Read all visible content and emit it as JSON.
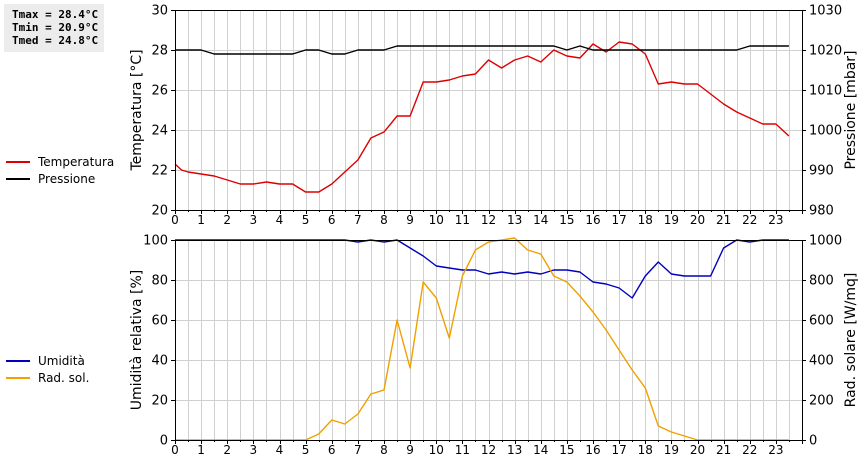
{
  "stats": {
    "tmax": "Tmax = 28.4°C",
    "tmin": "Tmin = 20.9°C",
    "tmed": "Tmed = 24.8°C"
  },
  "colors": {
    "temperatura": "#dd0000",
    "pressione": "#000000",
    "umidita": "#0000bb",
    "rad_sol": "#f0a000",
    "grid": "#d0d0d0"
  },
  "chart_data": [
    {
      "type": "line",
      "ylabel_left": "Temperatura [°C]",
      "ylabel_right": "Pressione [mbar]",
      "x_ticks": [
        "0",
        "1",
        "2",
        "3",
        "4",
        "5",
        "6",
        "7",
        "8",
        "9",
        "10",
        "11",
        "12",
        "13",
        "14",
        "15",
        "16",
        "17",
        "18",
        "19",
        "20",
        "21",
        "22",
        "23"
      ],
      "xlim": [
        0,
        24
      ],
      "ylim_left": [
        20,
        30
      ],
      "yticks_left": [
        "20",
        "22",
        "24",
        "26",
        "28",
        "30"
      ],
      "ylim_right": [
        980,
        1030
      ],
      "yticks_right": [
        "980",
        "990",
        "1000",
        "1010",
        "1020",
        "1030"
      ],
      "grid": true,
      "series": [
        {
          "name": "Temperatura",
          "axis": "left",
          "x": [
            0,
            0.25,
            0.5,
            0.75,
            1,
            1.5,
            2,
            2.5,
            3,
            3.5,
            4,
            4.5,
            5,
            5.5,
            6,
            6.5,
            7,
            7.5,
            8,
            8.5,
            9,
            9.5,
            10,
            10.5,
            11,
            11.5,
            12,
            12.5,
            13,
            13.5,
            14,
            14.5,
            15,
            15.5,
            16,
            16.5,
            17,
            17.5,
            18,
            18.5,
            19,
            19.5,
            20,
            20.5,
            21,
            21.5,
            22,
            22.5,
            23,
            23.5
          ],
          "y": [
            22.3,
            22.0,
            21.9,
            21.85,
            21.8,
            21.7,
            21.5,
            21.3,
            21.3,
            21.4,
            21.3,
            21.3,
            20.9,
            20.9,
            21.3,
            21.9,
            22.5,
            23.6,
            23.9,
            24.7,
            24.7,
            26.4,
            26.4,
            26.5,
            26.7,
            26.8,
            27.5,
            27.1,
            27.5,
            27.7,
            27.4,
            28.0,
            27.7,
            27.6,
            28.3,
            27.9,
            28.4,
            28.3,
            27.8,
            26.3,
            26.4,
            26.3,
            26.3,
            25.8,
            25.3,
            24.9,
            24.6,
            24.3,
            24.3,
            23.7
          ]
        },
        {
          "name": "Pressione",
          "axis": "right",
          "x": [
            0,
            1,
            1.5,
            2,
            3,
            4,
            4.5,
            5,
            5.5,
            6,
            6.5,
            7,
            8,
            8.5,
            9,
            10,
            11,
            12,
            13,
            14,
            14.5,
            15,
            15.5,
            16,
            17,
            18,
            19,
            20,
            21,
            21.5,
            22,
            23,
            23.5
          ],
          "y": [
            1020,
            1020,
            1019,
            1019,
            1019,
            1019,
            1019,
            1020,
            1020,
            1019,
            1019,
            1020,
            1020,
            1021,
            1021,
            1021,
            1021,
            1021,
            1021,
            1021,
            1021,
            1020,
            1021,
            1020,
            1020,
            1020,
            1020,
            1020,
            1020,
            1020,
            1021,
            1021,
            1021
          ]
        }
      ]
    },
    {
      "type": "line",
      "ylabel_left": "Umidità relativa [%]",
      "ylabel_right": "Rad. solare [W/mq]",
      "x_ticks": [
        "0",
        "1",
        "2",
        "3",
        "4",
        "5",
        "6",
        "7",
        "8",
        "9",
        "10",
        "11",
        "12",
        "13",
        "14",
        "15",
        "16",
        "17",
        "18",
        "19",
        "20",
        "21",
        "22",
        "23"
      ],
      "xlim": [
        0,
        24
      ],
      "ylim_left": [
        0,
        100
      ],
      "yticks_left": [
        "0",
        "20",
        "40",
        "60",
        "80",
        "100"
      ],
      "ylim_right": [
        0,
        1000
      ],
      "yticks_right": [
        "0",
        "200",
        "400",
        "600",
        "800",
        "1000"
      ],
      "grid": true,
      "series": [
        {
          "name": "Umidità",
          "axis": "left",
          "x": [
            0,
            1,
            2,
            3,
            4,
            5,
            6,
            6.5,
            7,
            7.5,
            8,
            8.5,
            9,
            9.5,
            10,
            10.5,
            11,
            11.5,
            12,
            12.5,
            13,
            13.5,
            14,
            14.5,
            15,
            15.5,
            16,
            16.5,
            17,
            17.5,
            18,
            18.5,
            19,
            19.5,
            20,
            20.5,
            21,
            21.5,
            22,
            22.5,
            23,
            23.5
          ],
          "y": [
            100,
            100,
            100,
            100,
            100,
            100,
            100,
            100,
            99,
            100,
            99,
            100,
            96,
            92,
            87,
            86,
            85,
            85,
            83,
            84,
            83,
            84,
            83,
            85,
            85,
            84,
            79,
            78,
            76,
            71,
            82,
            89,
            83,
            82,
            82,
            82,
            96,
            100,
            99,
            100,
            100,
            100
          ]
        },
        {
          "name": "Rad. sol.",
          "axis": "right",
          "x": [
            0,
            1,
            2,
            3,
            4,
            5,
            5.5,
            6,
            6.5,
            7,
            7.5,
            8,
            8.5,
            9,
            9.5,
            10,
            10.5,
            11,
            11.5,
            12,
            12.5,
            13,
            13.5,
            14,
            14.5,
            15,
            15.5,
            16,
            16.5,
            17,
            17.5,
            18,
            18.5,
            19,
            19.5,
            20,
            20.5,
            21,
            22,
            23,
            23.5
          ],
          "y": [
            0,
            0,
            0,
            0,
            0,
            0,
            30,
            100,
            80,
            130,
            230,
            250,
            600,
            360,
            790,
            710,
            510,
            820,
            950,
            990,
            1000,
            1010,
            950,
            930,
            820,
            790,
            720,
            640,
            550,
            450,
            350,
            260,
            70,
            40,
            20,
            0,
            0,
            0,
            0,
            0,
            0
          ]
        }
      ]
    }
  ]
}
